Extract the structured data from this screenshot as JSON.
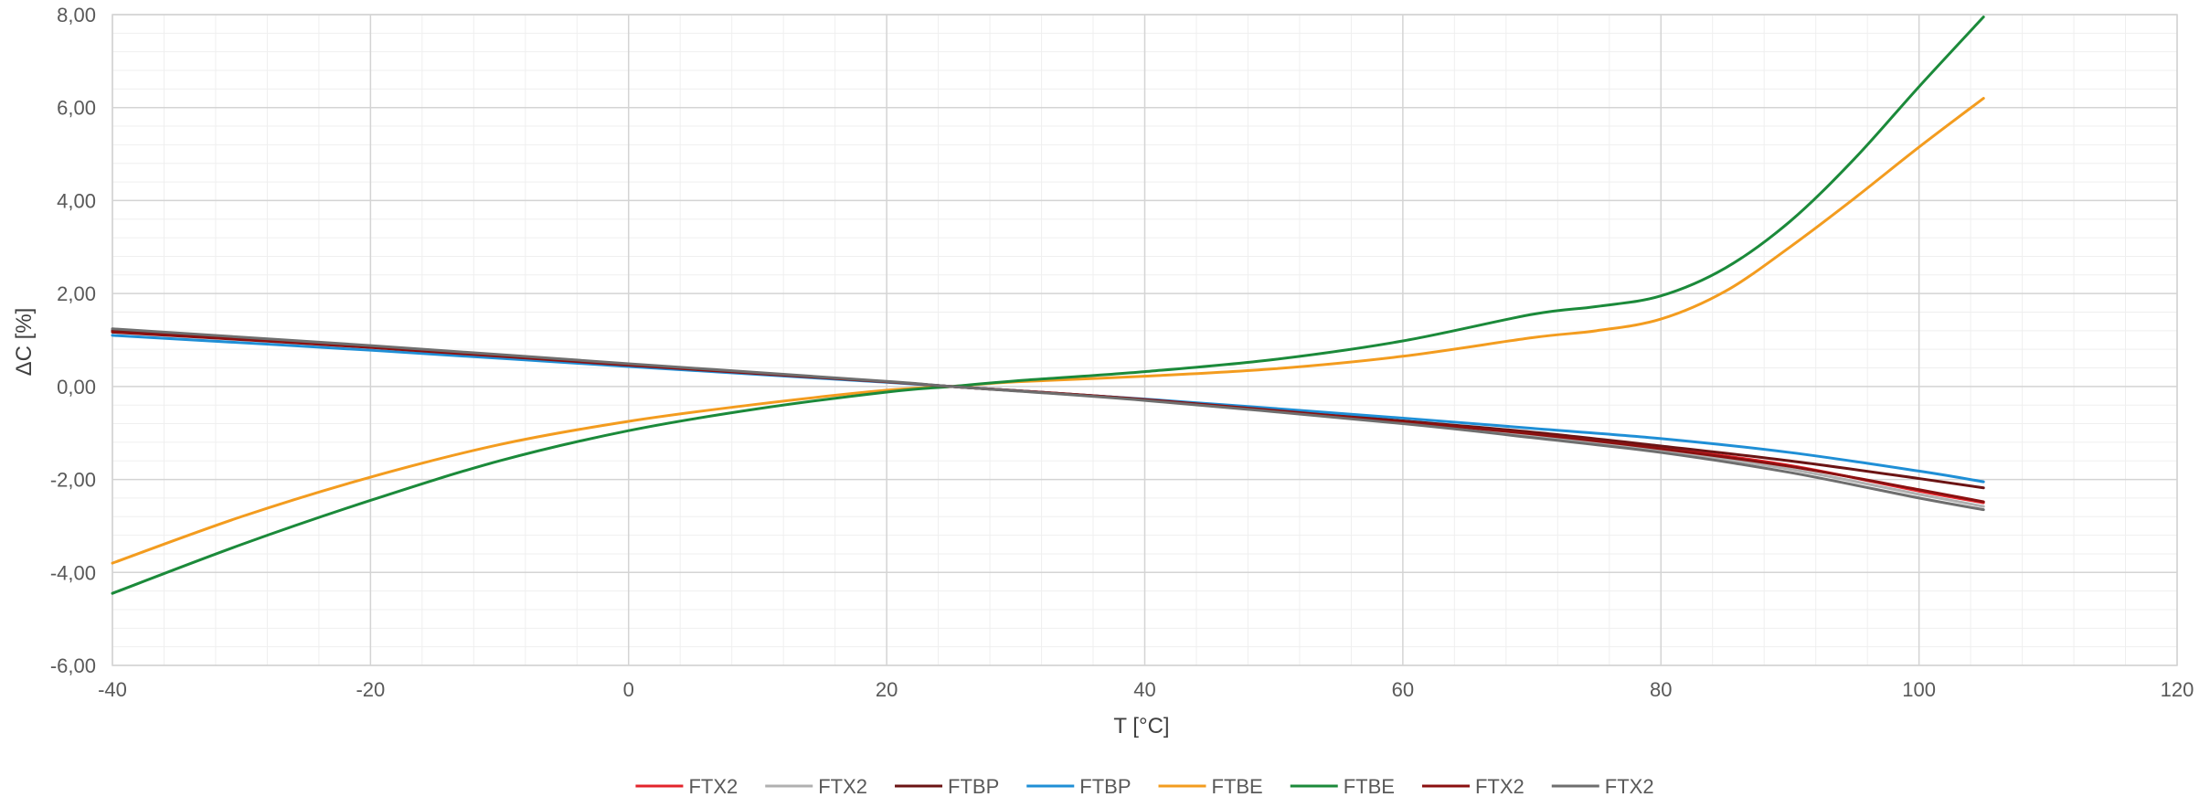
{
  "chart_data": {
    "type": "line",
    "xlabel": "T [°C]",
    "ylabel": "ΔC [%]",
    "xlim": [
      -40,
      120
    ],
    "ylim": [
      -6,
      8
    ],
    "x_ticks": [
      "-40",
      "-20",
      "0",
      "20",
      "40",
      "60",
      "80",
      "100",
      "120"
    ],
    "y_ticks": [
      "-6,00",
      "-4,00",
      "-2,00",
      "0,00",
      "2,00",
      "4,00",
      "6,00",
      "8,00"
    ],
    "grid": true,
    "legend_position": "bottom",
    "series": [
      {
        "name": "FTX2",
        "color": "#e3242b",
        "x": [
          -40,
          -20,
          0,
          20,
          25,
          40,
          60,
          70,
          80,
          90,
          100,
          105
        ],
        "y": [
          1.18,
          0.85,
          0.47,
          0.1,
          0.0,
          -0.28,
          -0.75,
          -1.0,
          -1.32,
          -1.7,
          -2.25,
          -2.5
        ]
      },
      {
        "name": "FTX2",
        "color": "#b0b0b0",
        "x": [
          -40,
          -20,
          0,
          20,
          25,
          40,
          60,
          70,
          80,
          90,
          100,
          105
        ],
        "y": [
          1.22,
          0.87,
          0.48,
          0.1,
          0.0,
          -0.29,
          -0.78,
          -1.05,
          -1.38,
          -1.78,
          -2.32,
          -2.58
        ]
      },
      {
        "name": "FTBP",
        "color": "#6b1414",
        "x": [
          -40,
          -20,
          0,
          20,
          25,
          40,
          60,
          70,
          80,
          90,
          100,
          105
        ],
        "y": [
          1.2,
          0.86,
          0.47,
          0.1,
          0.0,
          -0.28,
          -0.74,
          -0.98,
          -1.28,
          -1.6,
          -1.98,
          -2.18
        ]
      },
      {
        "name": "FTBP",
        "color": "#1f8fd6",
        "x": [
          -40,
          -20,
          0,
          20,
          25,
          40,
          60,
          70,
          80,
          90,
          100,
          105
        ],
        "y": [
          1.1,
          0.78,
          0.43,
          0.09,
          0.0,
          -0.27,
          -0.68,
          -0.9,
          -1.12,
          -1.42,
          -1.82,
          -2.05
        ]
      },
      {
        "name": "FTBE",
        "color": "#f39c1f",
        "x": [
          -40,
          -30,
          -20,
          -10,
          0,
          10,
          20,
          25,
          30,
          40,
          50,
          60,
          70,
          75,
          80,
          85,
          90,
          95,
          100,
          105
        ],
        "y": [
          -3.8,
          -2.8,
          -1.95,
          -1.25,
          -0.75,
          -0.38,
          -0.08,
          0.0,
          0.1,
          0.22,
          0.38,
          0.65,
          1.05,
          1.2,
          1.45,
          2.05,
          3.0,
          4.05,
          5.15,
          6.2
        ]
      },
      {
        "name": "FTBE",
        "color": "#1b8a3a",
        "x": [
          -40,
          -30,
          -20,
          -10,
          0,
          10,
          20,
          25,
          30,
          40,
          50,
          60,
          70,
          75,
          80,
          85,
          90,
          95,
          100,
          105
        ],
        "y": [
          -4.45,
          -3.4,
          -2.45,
          -1.6,
          -0.95,
          -0.48,
          -0.12,
          0.0,
          0.12,
          0.32,
          0.58,
          0.98,
          1.55,
          1.72,
          1.95,
          2.55,
          3.55,
          4.9,
          6.45,
          7.95
        ]
      },
      {
        "name": "FTX2",
        "color": "#8b1010",
        "x": [
          -40,
          -20,
          0,
          20,
          25,
          40,
          60,
          70,
          80,
          90,
          100,
          105
        ],
        "y": [
          1.17,
          0.84,
          0.46,
          0.1,
          0.0,
          -0.28,
          -0.76,
          -1.02,
          -1.34,
          -1.72,
          -2.22,
          -2.48
        ]
      },
      {
        "name": "FTX2",
        "color": "#6e6e6e",
        "x": [
          -40,
          -20,
          0,
          20,
          25,
          40,
          60,
          70,
          80,
          90,
          100,
          105
        ],
        "y": [
          1.24,
          0.88,
          0.49,
          0.11,
          0.0,
          -0.3,
          -0.8,
          -1.1,
          -1.42,
          -1.85,
          -2.4,
          -2.65
        ]
      }
    ]
  }
}
